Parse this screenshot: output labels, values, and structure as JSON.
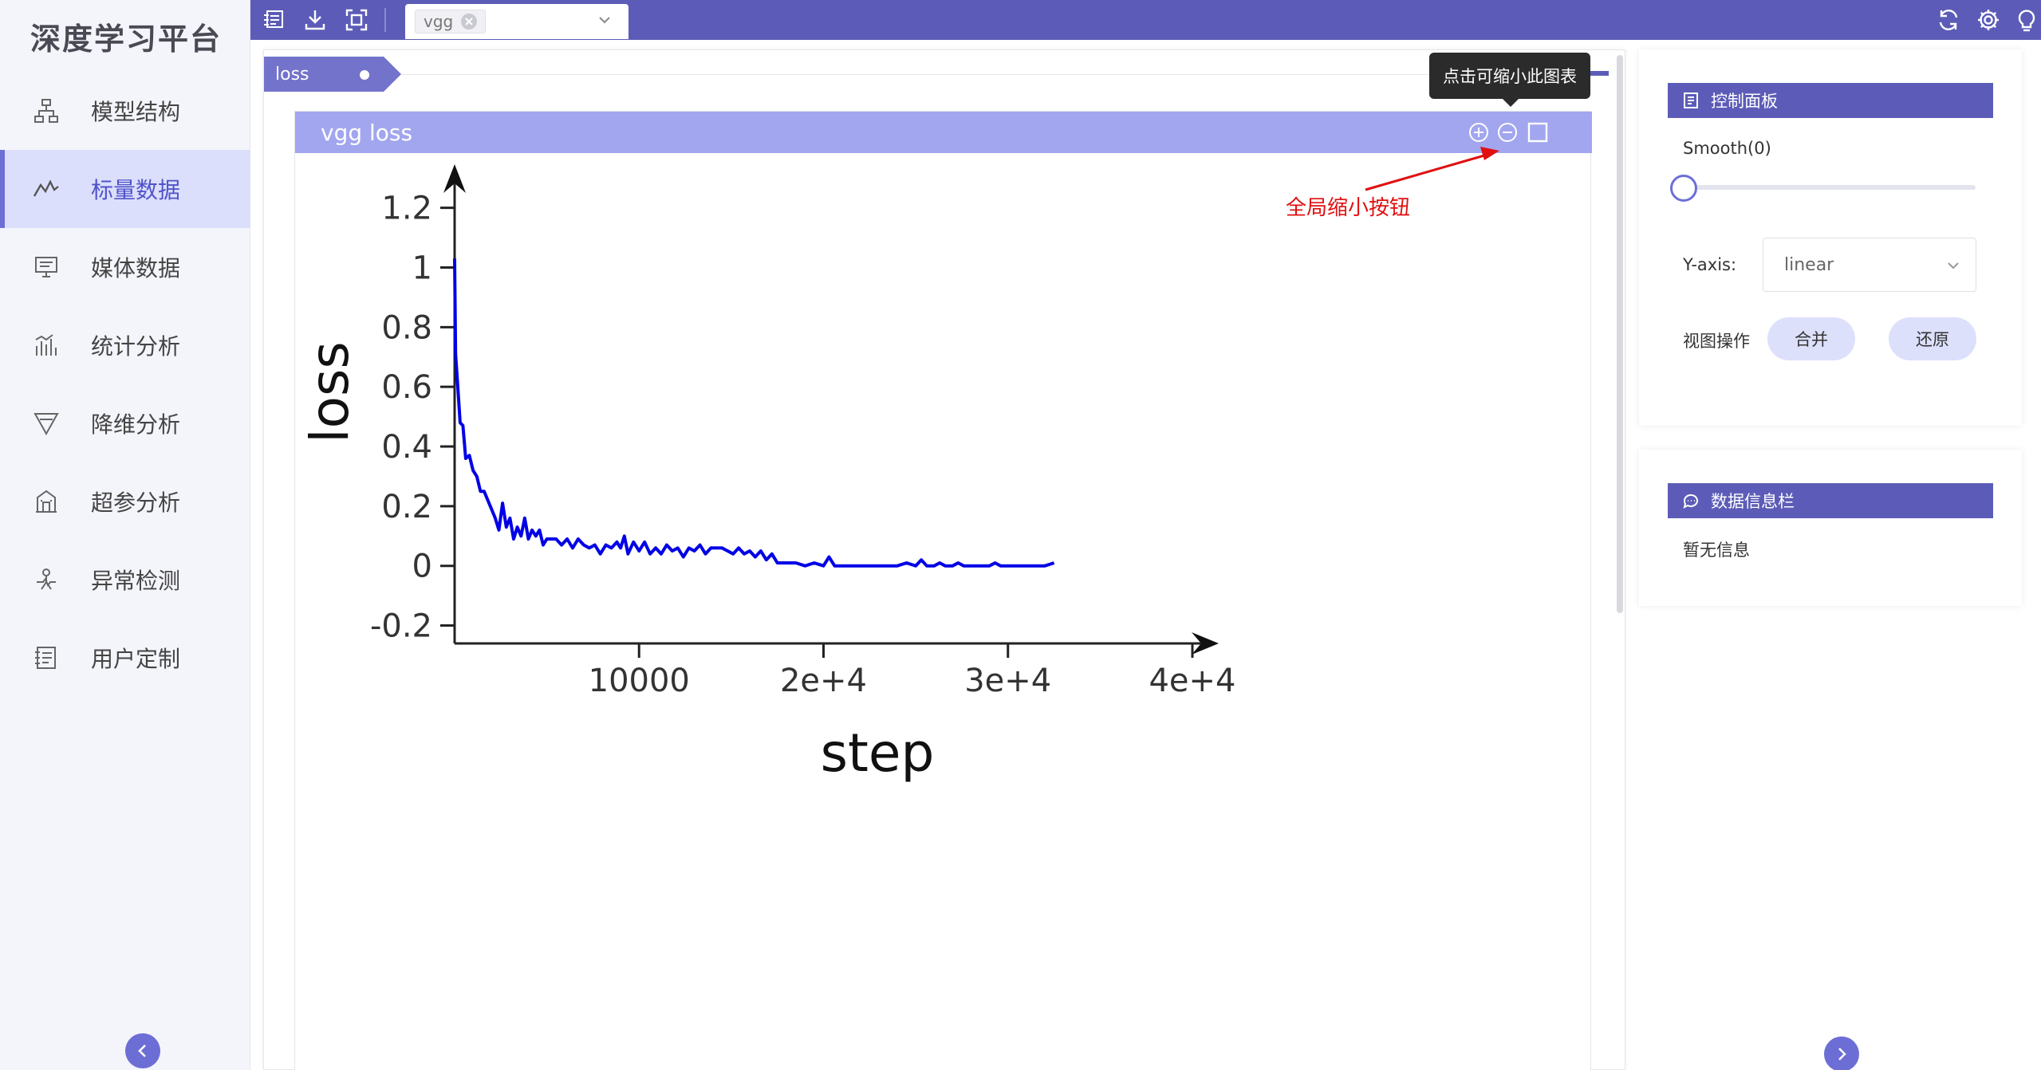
{
  "app": {
    "title": "深度学习平台"
  },
  "sidebar": {
    "items": [
      {
        "label": "模型结构",
        "icon": "model-structure-icon",
        "active": false
      },
      {
        "label": "标量数据",
        "icon": "scalar-chart-icon",
        "active": true
      },
      {
        "label": "媒体数据",
        "icon": "media-monitor-icon",
        "active": false
      },
      {
        "label": "统计分析",
        "icon": "statistics-icon",
        "active": false
      },
      {
        "label": "降维分析",
        "icon": "funnel-icon",
        "active": false
      },
      {
        "label": "超参分析",
        "icon": "building-icon",
        "active": false
      },
      {
        "label": "异常检测",
        "icon": "anomaly-icon",
        "active": false
      },
      {
        "label": "用户定制",
        "icon": "custom-icon",
        "active": false
      }
    ]
  },
  "topbar": {
    "run_tag": "vgg",
    "icons": [
      "layers-icon",
      "download-icon",
      "fullscreen-icon",
      "refresh-icon",
      "gear-icon",
      "lightbulb-icon"
    ]
  },
  "main": {
    "tag_tab": "loss",
    "chart": {
      "title": "vgg loss",
      "tooltip": "点击可缩小此图表",
      "annotation": "全局缩小按钮"
    }
  },
  "control_panel": {
    "title": "控制面板",
    "smooth_label": "Smooth(0)",
    "smooth_value": 0,
    "yaxis_label": "Y-axis:",
    "yaxis_value": "linear",
    "view_ops_label": "视图操作",
    "merge_label": "合并",
    "restore_label": "还原"
  },
  "info_panel": {
    "title": "数据信息栏",
    "empty_text": "暂无信息"
  },
  "chart_data": {
    "type": "line",
    "xlabel": "step",
    "ylabel": "loss",
    "xlim": [
      0,
      40000
    ],
    "ylim": [
      -0.26,
      1.33
    ],
    "x_ticks": [
      10000,
      20000,
      30000,
      40000
    ],
    "x_tick_labels": [
      "10000",
      "2e+4",
      "3e+4",
      "4e+4"
    ],
    "y_ticks": [
      -0.2,
      0,
      0.2,
      0.4,
      0.6,
      0.8,
      1,
      1.2
    ],
    "y_tick_labels": [
      "-0.2",
      "0",
      "0.2",
      "0.4",
      "0.6",
      "0.8",
      "1",
      "1.2"
    ],
    "line_color": "#0000e6",
    "series": [
      {
        "x": [
          0,
          50,
          150,
          300,
          450,
          600,
          800,
          1000,
          1200,
          1400,
          1600,
          1800,
          2000,
          2200,
          2400,
          2600,
          2800,
          3000,
          3200,
          3400,
          3600,
          3800,
          4000,
          4200,
          4400,
          4600,
          4800,
          5000,
          5200,
          5500,
          5800,
          6100,
          6400,
          6700,
          7000,
          7300,
          7600,
          7900,
          8200,
          8500,
          8800,
          9000,
          9200,
          9400,
          9700,
          10000,
          10300,
          10600,
          10900,
          11200,
          11500,
          11800,
          12100,
          12400,
          12700,
          13000,
          13300,
          13600,
          13900,
          14200,
          14500,
          14800,
          15100,
          15400,
          15700,
          16000,
          16300,
          16600,
          16900,
          17200,
          17500,
          17800,
          18100,
          18500,
          19000,
          19500,
          20000,
          20300,
          20600,
          21000,
          22000,
          23000,
          24000,
          24500,
          25000,
          25300,
          25600,
          26000,
          26300,
          26600,
          27000,
          27300,
          27600,
          28000,
          29000,
          29300,
          29600,
          30000,
          31000,
          32000,
          32500
        ],
        "y": [
          1.03,
          0.71,
          0.62,
          0.48,
          0.47,
          0.36,
          0.37,
          0.32,
          0.3,
          0.25,
          0.25,
          0.22,
          0.19,
          0.16,
          0.12,
          0.21,
          0.13,
          0.16,
          0.09,
          0.13,
          0.1,
          0.16,
          0.09,
          0.12,
          0.1,
          0.12,
          0.07,
          0.09,
          0.09,
          0.09,
          0.07,
          0.09,
          0.06,
          0.09,
          0.07,
          0.06,
          0.07,
          0.04,
          0.07,
          0.06,
          0.08,
          0.06,
          0.1,
          0.04,
          0.08,
          0.05,
          0.08,
          0.04,
          0.06,
          0.04,
          0.07,
          0.05,
          0.06,
          0.03,
          0.06,
          0.05,
          0.07,
          0.04,
          0.06,
          0.06,
          0.06,
          0.05,
          0.04,
          0.06,
          0.04,
          0.05,
          0.03,
          0.05,
          0.02,
          0.04,
          0.01,
          0.01,
          0.01,
          0.01,
          0.0,
          0.01,
          0.0,
          0.03,
          0.0,
          0.0,
          0.0,
          0.0,
          0.0,
          0.01,
          0.0,
          0.02,
          0.0,
          0.0,
          0.01,
          0.0,
          0.0,
          0.01,
          0.0,
          0.0,
          0.0,
          0.01,
          0.0,
          0.0,
          0.0,
          0.0,
          0.01
        ]
      }
    ]
  }
}
